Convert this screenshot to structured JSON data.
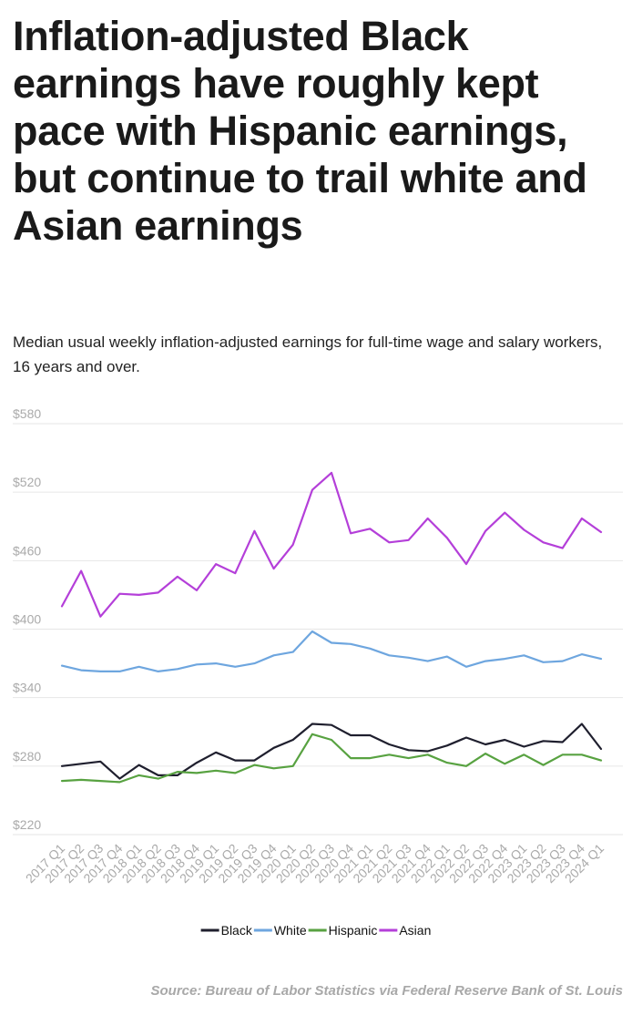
{
  "header": {
    "title": "Inflation-adjusted Black earnings have roughly kept pace with Hispanic earnings, but continue to trail white and Asian earnings",
    "subtitle": "Median usual weekly inflation-adjusted earnings for full-time wage and salary workers, 16 years and over."
  },
  "footer": {
    "source": "Source: Bureau of Labor Statistics via Federal Reserve Bank of St. Louis"
  },
  "chart_data": {
    "type": "line",
    "title": "",
    "xlabel": "",
    "ylabel": "",
    "ylim": [
      220,
      580
    ],
    "y_ticks": [
      220,
      280,
      340,
      400,
      460,
      520,
      580
    ],
    "y_tick_labels": [
      "$220",
      "$280",
      "$340",
      "$400",
      "$460",
      "$520",
      "$580"
    ],
    "grid": true,
    "legend_position": "bottom-center",
    "categories": [
      "2017 Q1",
      "2017 Q2",
      "2017 Q3",
      "2017 Q4",
      "2018 Q1",
      "2018 Q2",
      "2018 Q3",
      "2018 Q4",
      "2019 Q1",
      "2019 Q2",
      "2019 Q3",
      "2019 Q4",
      "2020 Q1",
      "2020 Q2",
      "2020 Q3",
      "2020 Q4",
      "2021 Q1",
      "2021 Q2",
      "2021 Q3",
      "2021 Q4",
      "2022 Q1",
      "2022 Q2",
      "2022 Q3",
      "2022 Q4",
      "2023 Q1",
      "2023 Q2",
      "2023 Q3",
      "2023 Q4",
      "2024 Q1"
    ],
    "series": [
      {
        "name": "Black",
        "color": "#1f1f2e",
        "values": [
          280,
          282,
          284,
          269,
          281,
          272,
          272,
          283,
          292,
          285,
          285,
          296,
          303,
          317,
          316,
          307,
          307,
          299,
          294,
          293,
          298,
          305,
          299,
          303,
          297,
          302,
          301,
          317,
          295
        ]
      },
      {
        "name": "White",
        "color": "#6ea6df",
        "values": [
          368,
          364,
          363,
          363,
          367,
          363,
          365,
          369,
          370,
          367,
          370,
          377,
          380,
          398,
          388,
          387,
          383,
          377,
          375,
          372,
          376,
          367,
          372,
          374,
          377,
          371,
          372,
          378,
          374
        ]
      },
      {
        "name": "Hispanic",
        "color": "#58a241",
        "values": [
          267,
          268,
          267,
          266,
          272,
          269,
          275,
          274,
          276,
          274,
          281,
          278,
          280,
          308,
          303,
          287,
          287,
          290,
          287,
          290,
          283,
          280,
          291,
          282,
          290,
          281,
          290,
          290,
          285
        ]
      },
      {
        "name": "Asian",
        "color": "#b43fd9",
        "values": [
          420,
          451,
          411,
          431,
          430,
          432,
          446,
          434,
          457,
          449,
          486,
          453,
          474,
          522,
          537,
          484,
          488,
          476,
          478,
          497,
          480,
          457,
          486,
          502,
          487,
          476,
          471,
          497,
          485
        ]
      }
    ]
  }
}
